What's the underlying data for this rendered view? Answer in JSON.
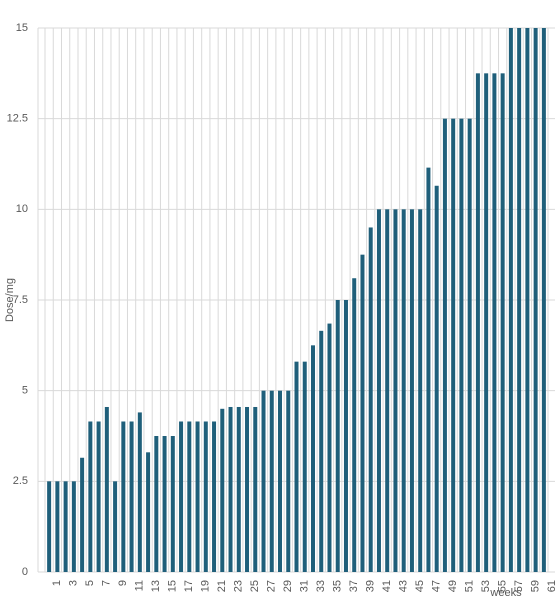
{
  "chart_data": {
    "type": "bar",
    "x_label": "weeks",
    "y_label": "Dose/mg",
    "categories": [
      "1",
      null,
      "3",
      null,
      "5",
      null,
      "7",
      null,
      "9",
      null,
      "11",
      null,
      "13",
      null,
      "15",
      null,
      "17",
      null,
      "19",
      null,
      "21",
      null,
      "23",
      null,
      "25",
      null,
      "27",
      null,
      "29",
      null,
      "31",
      null,
      "33",
      null,
      "35",
      null,
      "37",
      null,
      "39",
      null,
      "41",
      null,
      "43",
      null,
      "45",
      null,
      "47",
      null,
      "49",
      null,
      "51",
      null,
      "53",
      null,
      "55",
      null,
      "57",
      null,
      "59",
      null,
      "61"
    ],
    "values": [
      2.5,
      2.5,
      2.5,
      2.5,
      3.15,
      4.15,
      4.15,
      4.55,
      2.5,
      4.15,
      4.15,
      4.4,
      3.3,
      3.75,
      3.75,
      3.75,
      4.15,
      4.15,
      4.15,
      4.15,
      4.15,
      4.5,
      4.55,
      4.55,
      4.55,
      4.55,
      5,
      5,
      5,
      5,
      5.8,
      5.8,
      6.25,
      6.65,
      6.85,
      7.5,
      7.5,
      8.1,
      8.75,
      9.5,
      10,
      10,
      10,
      10,
      10,
      10,
      11.15,
      10.65,
      12.5,
      12.5,
      12.5,
      12.5,
      13.75,
      13.75,
      13.75,
      13.75,
      15,
      15,
      15,
      15,
      15
    ],
    "color": "#1f5f7a",
    "ylim": [
      0,
      15
    ],
    "yticks": [
      0,
      2.5,
      5,
      7.5,
      10,
      12.5,
      15
    ],
    "grid": true
  }
}
